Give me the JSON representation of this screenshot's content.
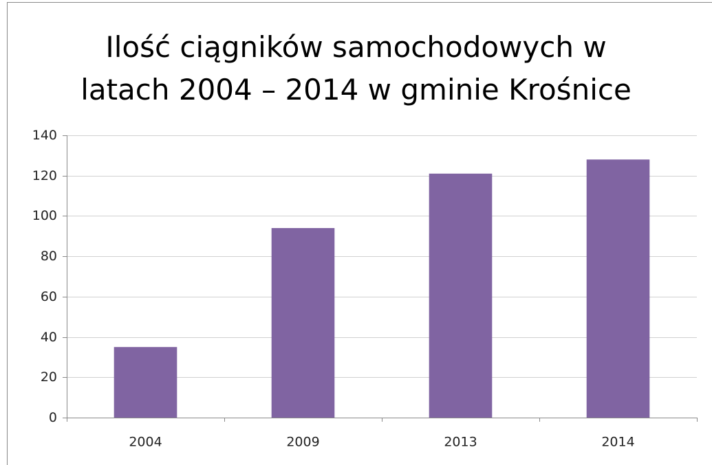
{
  "chart_data": {
    "type": "bar",
    "title": "Ilość ciągników samochodowych w latach 2004 – 2014 w gminie Krośnice",
    "categories": [
      "2004",
      "2009",
      "2013",
      "2014"
    ],
    "values": [
      35,
      94,
      121,
      128
    ],
    "color": "#8064a2",
    "ylim": [
      0,
      140
    ],
    "yticks": [
      0,
      20,
      40,
      60,
      80,
      100,
      120,
      140
    ],
    "grid": true
  }
}
